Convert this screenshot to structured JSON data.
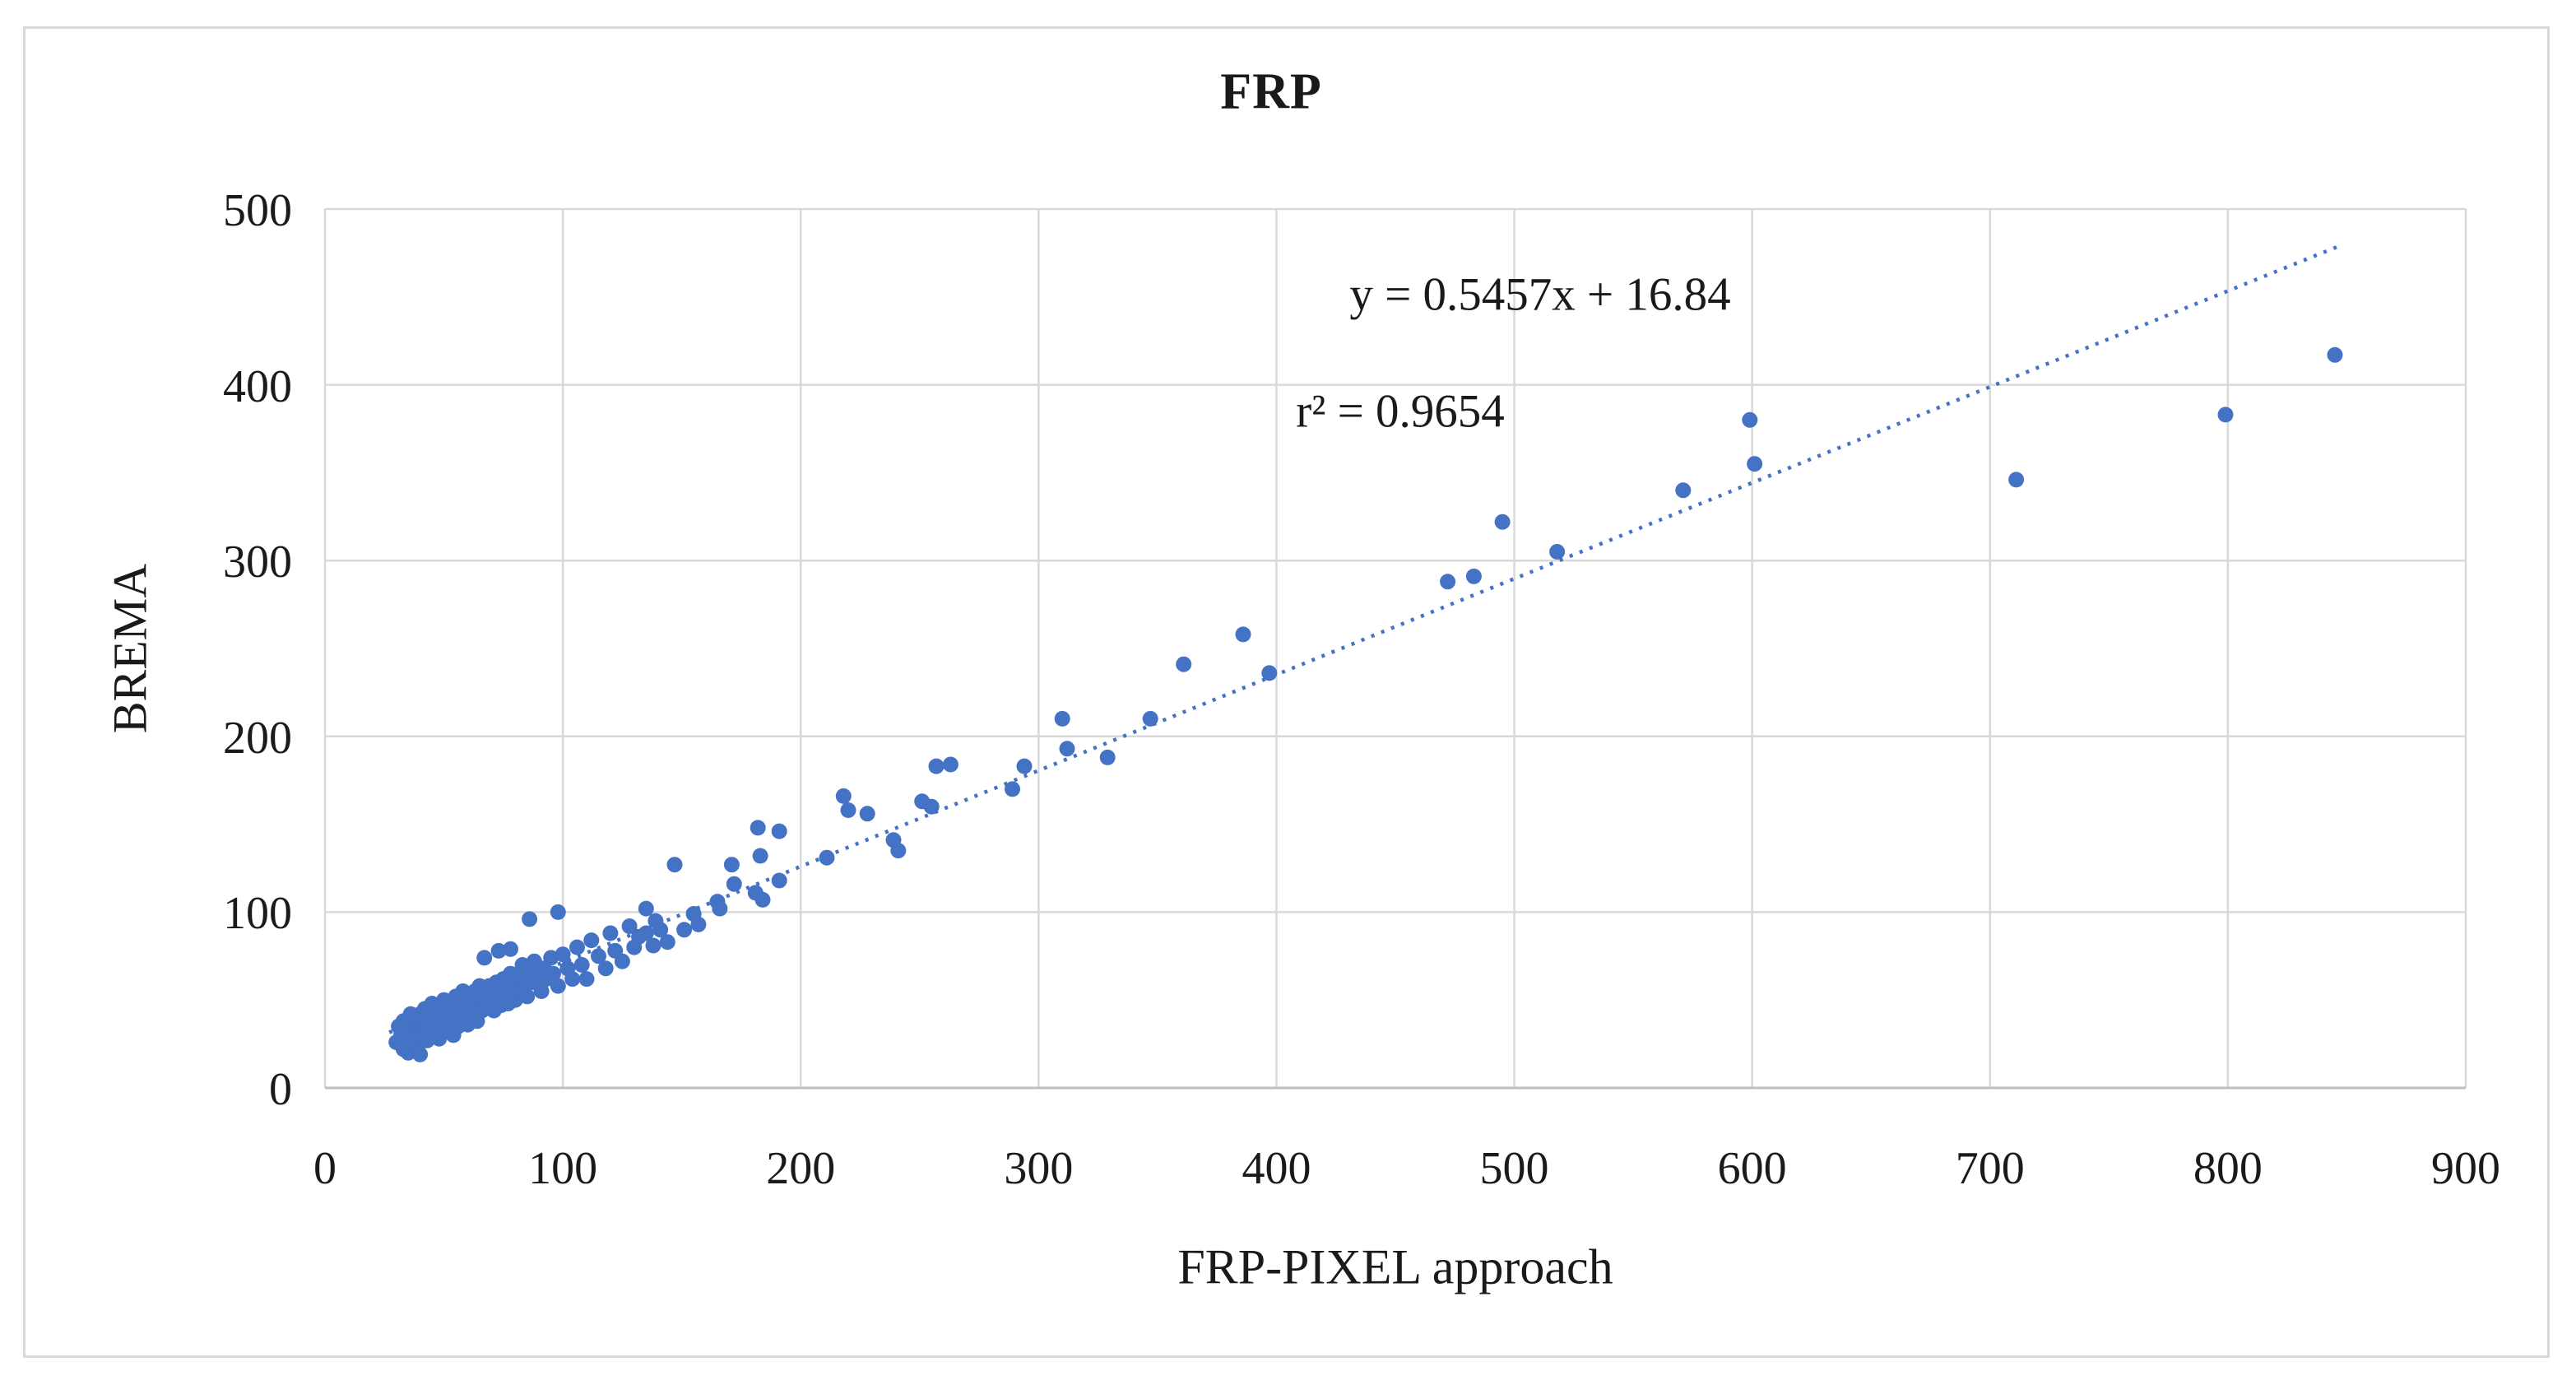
{
  "header": {
    "title": "FRP"
  },
  "annotations": {
    "equation": "y = 0.5457x + 16.84",
    "r_squared": "r² = 0.9654"
  },
  "colors": {
    "marker": "#4472C4",
    "trendline": "#4472C4",
    "gridline": "#D9D9D9",
    "axis_line": "#BFBFBF",
    "text": "#1a1a1a",
    "border": "#D9D9D9"
  },
  "chart_data": {
    "type": "scatter",
    "title": "FRP",
    "xlabel": "FRP-PIXEL approach",
    "ylabel": "BREMA",
    "xlim": [
      0,
      900
    ],
    "ylim": [
      0,
      500
    ],
    "x_ticks": [
      0,
      100,
      200,
      300,
      400,
      500,
      600,
      700,
      800,
      900
    ],
    "y_ticks": [
      0,
      100,
      200,
      300,
      400,
      500
    ],
    "grid": true,
    "legend": "none",
    "marker_color": "#4472C4",
    "trendline": {
      "label": "y = 0.5457x + 16.84",
      "slope": 0.5457,
      "intercept": 16.84,
      "r2": 0.9654,
      "x_start": 27,
      "x_end": 848,
      "style": "dotted",
      "color": "#4472C4"
    },
    "points": [
      [
        30,
        26
      ],
      [
        31,
        35
      ],
      [
        32,
        30
      ],
      [
        33,
        22
      ],
      [
        33,
        38
      ],
      [
        34,
        31
      ],
      [
        35,
        20
      ],
      [
        35,
        36
      ],
      [
        36,
        28
      ],
      [
        36,
        42
      ],
      [
        37,
        33
      ],
      [
        37,
        25
      ],
      [
        38,
        40
      ],
      [
        38,
        30
      ],
      [
        39,
        35
      ],
      [
        39,
        24
      ],
      [
        40,
        19
      ],
      [
        40,
        42
      ],
      [
        41,
        33
      ],
      [
        41,
        28
      ],
      [
        42,
        45
      ],
      [
        42,
        36
      ],
      [
        43,
        27
      ],
      [
        44,
        40
      ],
      [
        44,
        31
      ],
      [
        45,
        48
      ],
      [
        45,
        36
      ],
      [
        46,
        30
      ],
      [
        46,
        43
      ],
      [
        47,
        38
      ],
      [
        48,
        28
      ],
      [
        48,
        46
      ],
      [
        49,
        35
      ],
      [
        50,
        50
      ],
      [
        50,
        40
      ],
      [
        51,
        32
      ],
      [
        52,
        44
      ],
      [
        52,
        37
      ],
      [
        53,
        48
      ],
      [
        54,
        39
      ],
      [
        54,
        30
      ],
      [
        55,
        52
      ],
      [
        56,
        42
      ],
      [
        56,
        35
      ],
      [
        57,
        47
      ],
      [
        58,
        38
      ],
      [
        58,
        55
      ],
      [
        59,
        44
      ],
      [
        60,
        36
      ],
      [
        60,
        50
      ],
      [
        61,
        45
      ],
      [
        62,
        40
      ],
      [
        63,
        55
      ],
      [
        64,
        47
      ],
      [
        64,
        38
      ],
      [
        65,
        58
      ],
      [
        66,
        44
      ],
      [
        67,
        52
      ],
      [
        68,
        47
      ],
      [
        69,
        58
      ],
      [
        70,
        50
      ],
      [
        71,
        44
      ],
      [
        72,
        60
      ],
      [
        73,
        52
      ],
      [
        74,
        47
      ],
      [
        75,
        62
      ],
      [
        76,
        54
      ],
      [
        77,
        48
      ],
      [
        78,
        65
      ],
      [
        79,
        56
      ],
      [
        80,
        50
      ],
      [
        81,
        63
      ],
      [
        82,
        55
      ],
      [
        83,
        70
      ],
      [
        84,
        58
      ],
      [
        85,
        52
      ],
      [
        86,
        66
      ],
      [
        87,
        60
      ],
      [
        88,
        72
      ],
      [
        90,
        62
      ],
      [
        91,
        55
      ],
      [
        92,
        68
      ],
      [
        93,
        62
      ],
      [
        95,
        74
      ],
      [
        96,
        65
      ],
      [
        98,
        58
      ],
      [
        100,
        76
      ],
      [
        102,
        68
      ],
      [
        104,
        62
      ],
      [
        106,
        80
      ],
      [
        108,
        70
      ],
      [
        110,
        62
      ],
      [
        112,
        84
      ],
      [
        115,
        75
      ],
      [
        118,
        68
      ],
      [
        120,
        88
      ],
      [
        122,
        78
      ],
      [
        125,
        72
      ],
      [
        128,
        92
      ],
      [
        130,
        80
      ],
      [
        132,
        86
      ],
      [
        67,
        74
      ],
      [
        73,
        78
      ],
      [
        78,
        79
      ],
      [
        86,
        96
      ],
      [
        98,
        100
      ],
      [
        135,
        88
      ],
      [
        135,
        102
      ],
      [
        138,
        81
      ],
      [
        139,
        95
      ],
      [
        141,
        90
      ],
      [
        144,
        83
      ],
      [
        147,
        127
      ],
      [
        151,
        90
      ],
      [
        155,
        99
      ],
      [
        157,
        93
      ],
      [
        165,
        106
      ],
      [
        166,
        102
      ],
      [
        171,
        127
      ],
      [
        172,
        116
      ],
      [
        181,
        111
      ],
      [
        182,
        148
      ],
      [
        183,
        132
      ],
      [
        184,
        107
      ],
      [
        191,
        118
      ],
      [
        191,
        146
      ],
      [
        211,
        131
      ],
      [
        218,
        166
      ],
      [
        220,
        158
      ],
      [
        228,
        156
      ],
      [
        239,
        141
      ],
      [
        241,
        135
      ],
      [
        251,
        163
      ],
      [
        255,
        160
      ],
      [
        257,
        183
      ],
      [
        263,
        184
      ],
      [
        289,
        170
      ],
      [
        294,
        183
      ],
      [
        310,
        210
      ],
      [
        312,
        193
      ],
      [
        329,
        188
      ],
      [
        347,
        210
      ],
      [
        361,
        241
      ],
      [
        386,
        258
      ],
      [
        397,
        236
      ],
      [
        472,
        288
      ],
      [
        483,
        291
      ],
      [
        495,
        322
      ],
      [
        518,
        305
      ],
      [
        571,
        340
      ],
      [
        599,
        380
      ],
      [
        601,
        355
      ],
      [
        711,
        346
      ],
      [
        799,
        383
      ],
      [
        845,
        417
      ]
    ]
  }
}
